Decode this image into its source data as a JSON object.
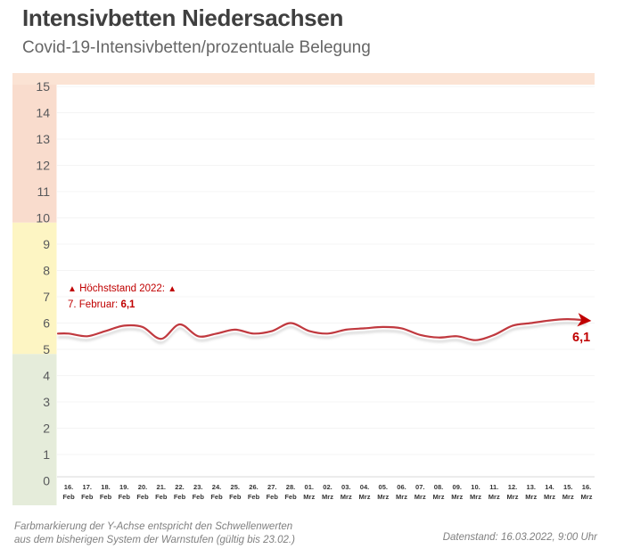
{
  "header": {
    "title": "Intensivbetten Niedersachsen",
    "subtitle": "Covid-19-Intensivbetten/prozentuale Belegung"
  },
  "annotation": {
    "triangle": "▲",
    "heading": "Höchststand 2022:",
    "date_prefix": "7. Februar: ",
    "value": "6,1"
  },
  "end_label": "6,1",
  "footer": {
    "left_line1": "Farbmarkierung der Y-Achse entspricht den Schwellenwerten",
    "left_line2": "aus dem bisherigen System der Warnstufen (gültig bis 23.02.)",
    "right": "Datenstand: 16.03.2022, 9:00 Uhr"
  },
  "colors": {
    "accent_red": "#c00000",
    "line_red": "#c0393f",
    "zone_pink": "#f9dccd",
    "zone_strip": "#fbe3d4",
    "zone_yellow": "#fdf5c3",
    "zone_green": "#e5ecda",
    "grid": "#f4f4f4",
    "axis": "#d9d9d9",
    "title_gray": "#3f3f3f",
    "subtitle_gray": "#666666",
    "footer_gray": "#808080",
    "tick_gray": "#58595b",
    "xtick_gray": "#333333"
  },
  "chart_data": {
    "type": "line",
    "title": "Intensivbetten Niedersachsen",
    "subtitle": "Covid-19-Intensivbetten/prozentuale Belegung",
    "xlabel": "",
    "ylabel": "",
    "ylim": [
      0,
      15
    ],
    "yticks": [
      0,
      1,
      2,
      3,
      4,
      5,
      6,
      7,
      8,
      9,
      10,
      11,
      12,
      13,
      14,
      15
    ],
    "grid": "horizontal-faint",
    "legend": "none",
    "categories": [
      "16. Feb",
      "17. Feb",
      "18. Feb",
      "19. Feb",
      "20. Feb",
      "21. Feb",
      "22. Feb",
      "23. Feb",
      "24. Feb",
      "25. Feb",
      "26. Feb",
      "27. Feb",
      "28. Feb",
      "01. Mrz",
      "02. Mrz",
      "03. Mrz",
      "04. Mrz",
      "05. Mrz",
      "06. Mrz",
      "07. Mrz",
      "08. Mrz",
      "09. Mrz",
      "10. Mrz",
      "11. Mrz",
      "12. Mrz",
      "13. Mrz",
      "14. Mrz",
      "15. Mrz",
      "16. Mrz"
    ],
    "values": [
      5.6,
      5.5,
      5.7,
      5.9,
      5.85,
      5.4,
      5.95,
      5.5,
      5.6,
      5.75,
      5.6,
      5.7,
      6.0,
      5.7,
      5.6,
      5.75,
      5.8,
      5.85,
      5.8,
      5.55,
      5.45,
      5.5,
      5.35,
      5.55,
      5.9,
      6.0,
      6.1,
      6.15,
      6.1
    ],
    "last_value_label": "6,1",
    "zones": [
      {
        "from": 10,
        "to": 15,
        "name": "warning-red",
        "color": "#f9dccd"
      },
      {
        "from": 5,
        "to": 10,
        "name": "warning-yellow",
        "color": "#fdf5c3"
      },
      {
        "from": 0,
        "to": 5,
        "name": "warning-green",
        "color": "#e5ecda"
      }
    ],
    "top_strip_color": "#fbe3d4",
    "line_color": "#c0393f"
  }
}
